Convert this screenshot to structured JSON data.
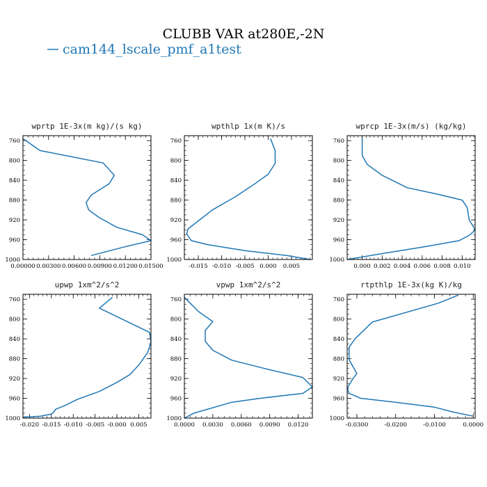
{
  "figure": {
    "title": "CLUBB VAR at280E,-2N",
    "legend": "cam144_lscale_pmf_a1test",
    "series_color": "#1f77b4"
  },
  "chart_data": [
    {
      "type": "line",
      "title": "wprtp  1E-3x(m kg)/(s kg)",
      "xlim": [
        0.0,
        0.015
      ],
      "ylim": [
        1000,
        750
      ],
      "xticks": [
        "0.00000",
        "0.00300",
        "0.00600",
        "0.00900",
        "0.01200",
        "0.01500"
      ],
      "xtick_values": [
        0.0,
        0.003,
        0.006,
        0.009,
        0.012,
        0.015
      ],
      "yticks": [
        "760",
        "800",
        "840",
        "880",
        "920",
        "960",
        "1000"
      ],
      "ytick_values": [
        760,
        800,
        840,
        880,
        920,
        960,
        1000
      ],
      "x": [
        0.0,
        0.002,
        0.0094,
        0.0107,
        0.0101,
        0.008,
        0.0074,
        0.0077,
        0.0089,
        0.011,
        0.014,
        0.015,
        0.0118,
        0.008
      ],
      "y": [
        756,
        780,
        805,
        830,
        847,
        870,
        885,
        900,
        915,
        935,
        950,
        962,
        975,
        992
      ]
    },
    {
      "type": "line",
      "title": "wpthlp  1x(m K)/s",
      "xlim": [
        -0.018,
        0.0095
      ],
      "ylim": [
        1000,
        750
      ],
      "xticks": [
        "-0.015",
        "-0.010",
        "-0.005",
        "0.000",
        "0.005"
      ],
      "xtick_values": [
        -0.015,
        -0.01,
        -0.005,
        0.0,
        0.005
      ],
      "yticks": [
        "760",
        "800",
        "840",
        "880",
        "920",
        "960",
        "1000"
      ],
      "ytick_values": [
        760,
        800,
        840,
        880,
        920,
        960,
        1000
      ],
      "x": [
        0.0005,
        0.0015,
        0.0015,
        0.0,
        -0.003,
        -0.007,
        -0.012,
        -0.015,
        -0.0172,
        -0.0175,
        -0.0165,
        -0.013,
        -0.005,
        0.004,
        0.009
      ],
      "y": [
        756,
        780,
        806,
        828,
        848,
        873,
        900,
        922,
        938,
        948,
        962,
        970,
        982,
        992,
        1000
      ]
    },
    {
      "type": "line",
      "title": "wprcp  1E-3x(m/s) (kg/kg)",
      "xlim": [
        -0.0015,
        0.0113
      ],
      "ylim": [
        1000,
        750
      ],
      "xticks": [
        "0.000",
        "0.002",
        "0.004",
        "0.006",
        "0.008",
        "0.010"
      ],
      "xtick_values": [
        0.0,
        0.002,
        0.004,
        0.006,
        0.008,
        0.01
      ],
      "yticks": [
        "760",
        "800",
        "840",
        "880",
        "920",
        "960",
        "1000"
      ],
      "ytick_values": [
        760,
        800,
        840,
        880,
        920,
        960,
        1000
      ],
      "x": [
        0.0,
        0.0,
        0.0005,
        0.002,
        0.0045,
        0.0075,
        0.01,
        0.0105,
        0.0107,
        0.0113,
        0.0108,
        0.0097,
        0.006,
        0.002,
        0.0,
        -0.0015
      ],
      "y": [
        756,
        790,
        808,
        830,
        855,
        868,
        880,
        895,
        920,
        940,
        950,
        962,
        975,
        988,
        995,
        1000
      ]
    },
    {
      "type": "line",
      "title": "upwp  1xm^2/s^2",
      "xlim": [
        -0.0215,
        0.0078
      ],
      "ylim": [
        1000,
        750
      ],
      "xticks": [
        "-0.020",
        "-0.015",
        "-0.010",
        "-0.005",
        "-0.000",
        "0.005"
      ],
      "xtick_values": [
        -0.02,
        -0.015,
        -0.01,
        -0.005,
        0.0,
        0.005
      ],
      "yticks": [
        "760",
        "800",
        "840",
        "880",
        "920",
        "960",
        "1000"
      ],
      "ytick_values": [
        760,
        800,
        840,
        880,
        920,
        960,
        1000
      ],
      "x": [
        -0.001,
        -0.004,
        0.0075,
        0.0078,
        0.007,
        0.005,
        0.003,
        0.0,
        -0.004,
        -0.009,
        -0.012,
        -0.014,
        -0.0145,
        -0.015,
        -0.0175,
        -0.0215
      ],
      "y": [
        756,
        778,
        827,
        847,
        868,
        893,
        912,
        928,
        946,
        962,
        975,
        982,
        988,
        992,
        996,
        998
      ]
    },
    {
      "type": "line",
      "title": "vpwp  1xm^2/s^2",
      "xlim": [
        0.0,
        0.0135
      ],
      "ylim": [
        1000,
        750
      ],
      "xticks": [
        "0.0000",
        "0.0030",
        "0.0060",
        "0.0090",
        "0.0120"
      ],
      "xtick_values": [
        0.0,
        0.003,
        0.006,
        0.009,
        0.012
      ],
      "yticks": [
        "760",
        "800",
        "840",
        "880",
        "920",
        "960",
        "1000"
      ],
      "ytick_values": [
        760,
        800,
        840,
        880,
        920,
        960,
        1000
      ],
      "x": [
        0.0,
        0.0015,
        0.003,
        0.0022,
        0.0022,
        0.003,
        0.005,
        0.0085,
        0.0125,
        0.0135,
        0.0125,
        0.008,
        0.005,
        0.001,
        0.0
      ],
      "y": [
        756,
        785,
        805,
        823,
        845,
        863,
        883,
        900,
        918,
        937,
        950,
        960,
        968,
        990,
        1000
      ]
    },
    {
      "type": "line",
      "title": "rtpthlp  1E-3x(kg K)/kg",
      "xlim": [
        -0.0325,
        0.0005
      ],
      "ylim": [
        1000,
        750
      ],
      "xticks": [
        "-0.0300",
        "-0.0200",
        "-0.0100",
        "0.0000"
      ],
      "xtick_values": [
        -0.03,
        -0.02,
        -0.01,
        0.0
      ],
      "yticks": [
        "760",
        "800",
        "840",
        "880",
        "920",
        "960",
        "1000"
      ],
      "ytick_values": [
        760,
        800,
        840,
        880,
        920,
        960,
        1000
      ],
      "x": [
        -0.004,
        -0.009,
        -0.026,
        -0.0305,
        -0.032,
        -0.032,
        -0.03,
        -0.031,
        -0.0325,
        -0.032,
        -0.029,
        -0.02,
        -0.01,
        -0.005,
        0.0
      ],
      "y": [
        752,
        768,
        806,
        840,
        857,
        882,
        910,
        920,
        940,
        950,
        960,
        968,
        978,
        988,
        996
      ]
    }
  ]
}
